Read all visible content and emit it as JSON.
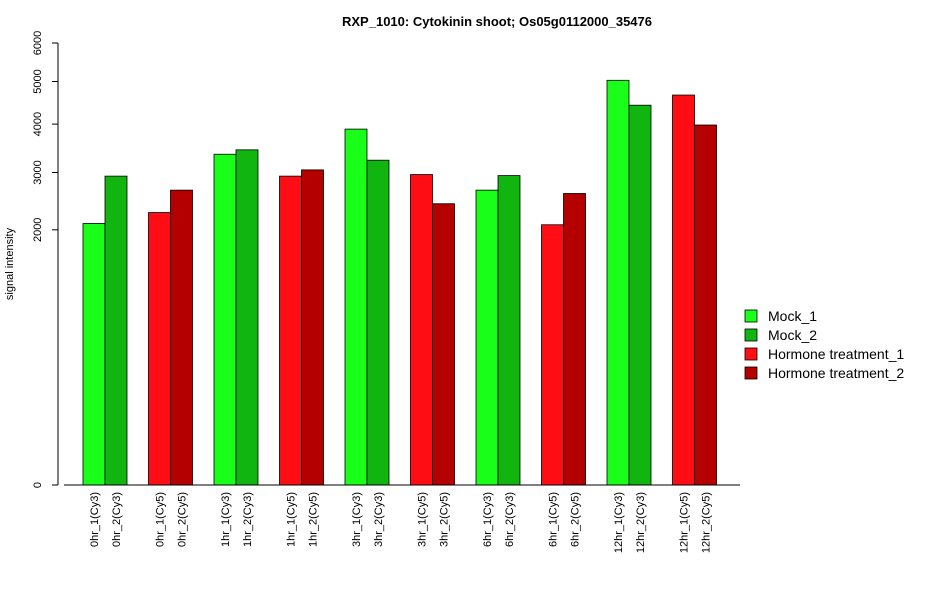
{
  "chart_data": {
    "type": "bar",
    "title": "RXP_1010: Cytokinin shoot; Os05g0112000_35476",
    "xlabel": "",
    "ylabel": "signal intensity",
    "y_scale": "sqrt",
    "ylim": [
      0,
      6000
    ],
    "yticks": [
      "0",
      "2000",
      "3000",
      "4000",
      "5000",
      "6000"
    ],
    "yticks_values": [
      0,
      2000,
      3000,
      4000,
      5000,
      6000
    ],
    "legend_position": "right",
    "series": [
      {
        "name": "Mock_1",
        "color": "#1aff1a"
      },
      {
        "name": "Mock_2",
        "color": "#10b510"
      },
      {
        "name": "Hormone treatment_1",
        "color": "#ff0d14"
      },
      {
        "name": "Hormone treatment_2",
        "color": "#b50000"
      }
    ],
    "bars": [
      {
        "label": "0hr_1(Cy3)",
        "value": 2100,
        "series": 0
      },
      {
        "label": "0hr_2(Cy3)",
        "value": 2930,
        "series": 1
      },
      {
        "label": "0hr_1(Cy5)",
        "value": 2280,
        "series": 2
      },
      {
        "label": "0hr_2(Cy5)",
        "value": 2670,
        "series": 3
      },
      {
        "label": "1hr_1(Cy3)",
        "value": 3360,
        "series": 0
      },
      {
        "label": "1hr_2(Cy3)",
        "value": 3450,
        "series": 1
      },
      {
        "label": "1hr_1(Cy5)",
        "value": 2930,
        "series": 2
      },
      {
        "label": "1hr_2(Cy5)",
        "value": 3050,
        "series": 3
      },
      {
        "label": "3hr_1(Cy3)",
        "value": 3890,
        "series": 0
      },
      {
        "label": "3hr_2(Cy3)",
        "value": 3240,
        "series": 1
      },
      {
        "label": "3hr_1(Cy5)",
        "value": 2960,
        "series": 2
      },
      {
        "label": "3hr_2(Cy5)",
        "value": 2430,
        "series": 3
      },
      {
        "label": "6hr_1(Cy3)",
        "value": 2670,
        "series": 0
      },
      {
        "label": "6hr_2(Cy3)",
        "value": 2940,
        "series": 1
      },
      {
        "label": "6hr_1(Cy5)",
        "value": 2080,
        "series": 2
      },
      {
        "label": "6hr_2(Cy5)",
        "value": 2610,
        "series": 3
      },
      {
        "label": "12hr_1(Cy3)",
        "value": 5030,
        "series": 0
      },
      {
        "label": "12hr_2(Cy3)",
        "value": 4430,
        "series": 1
      },
      {
        "label": "12hr_1(Cy5)",
        "value": 4670,
        "series": 2
      },
      {
        "label": "12hr_2(Cy5)",
        "value": 3980,
        "series": 3
      }
    ]
  }
}
